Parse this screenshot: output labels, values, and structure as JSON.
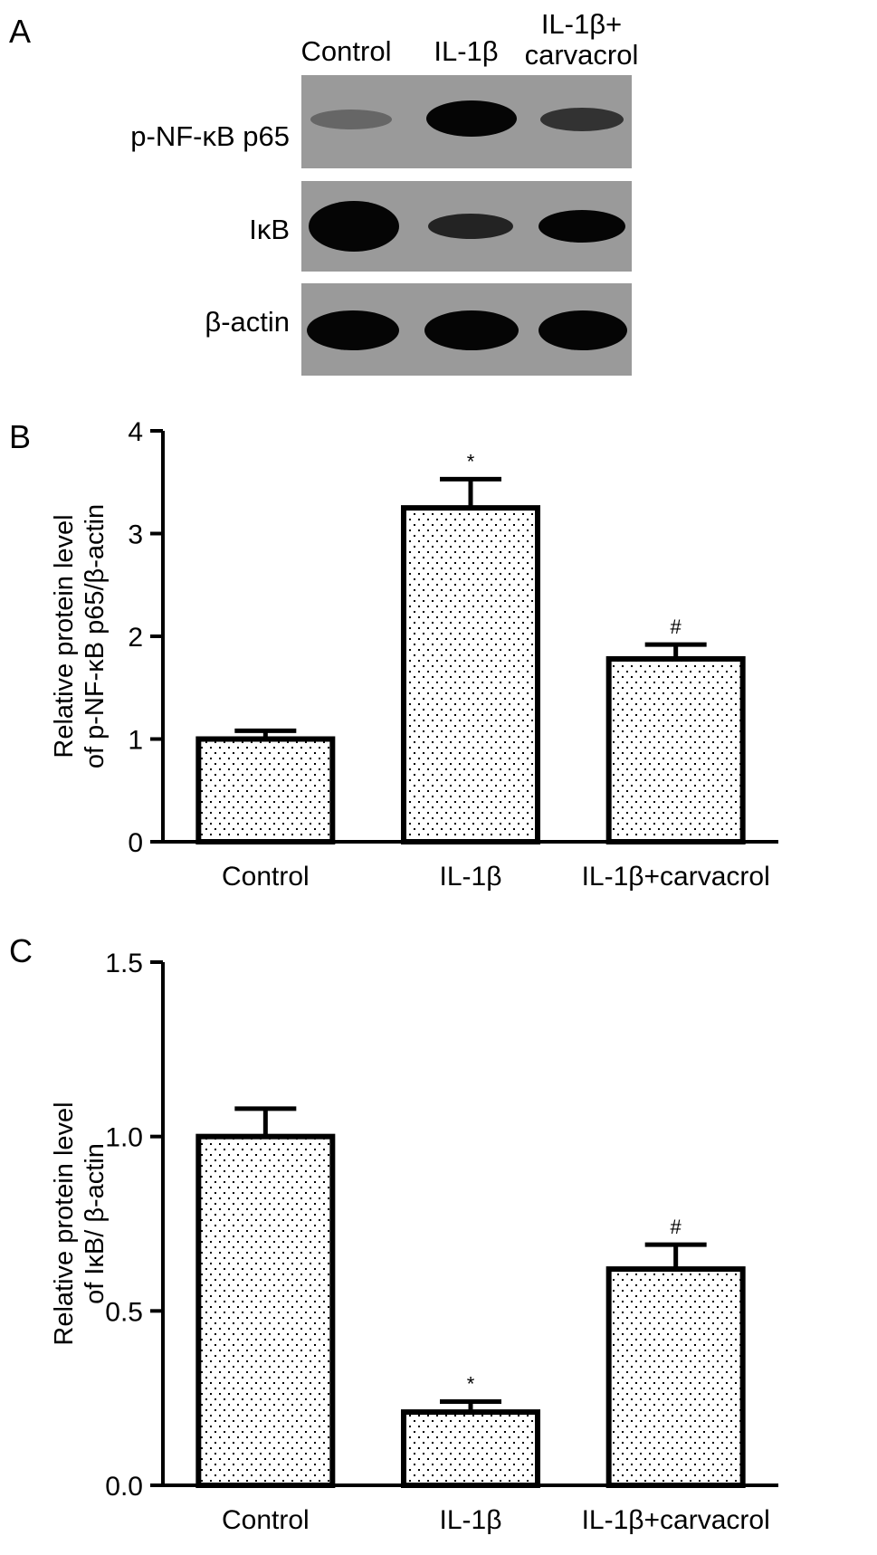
{
  "panels": {
    "a": "A",
    "b": "B",
    "c": "C"
  },
  "blot": {
    "lanes": [
      "Control",
      "IL-1β",
      "IL-1β+\ncarvacrol"
    ],
    "rows": [
      "p-NF-κB p65",
      "IκB",
      "β-actin"
    ],
    "band_intensity": [
      [
        0.25,
        1.0,
        0.55
      ],
      [
        1.0,
        0.45,
        0.75
      ],
      [
        1.0,
        1.0,
        1.0
      ]
    ]
  },
  "chart_data": [
    {
      "type": "bar",
      "categories": [
        "Control",
        "IL-1β",
        "IL-1β+carvacrol"
      ],
      "values": [
        1.0,
        3.25,
        1.78
      ],
      "errors": [
        0.08,
        0.28,
        0.14
      ],
      "annotations": [
        "",
        "*",
        "#"
      ],
      "ylabel": "Relative protein level\nof p-NF-κB p65/β-actin",
      "xlabel": "",
      "ylim": [
        0,
        4
      ],
      "yticks": [
        "0",
        "1",
        "2",
        "3",
        "4"
      ],
      "yticks_values": [
        0,
        1,
        2,
        3,
        4
      ],
      "grid": false,
      "fill": "dotted"
    },
    {
      "type": "bar",
      "categories": [
        "Control",
        "IL-1β",
        "IL-1β+carvacrol"
      ],
      "values": [
        1.0,
        0.21,
        0.62
      ],
      "errors": [
        0.08,
        0.03,
        0.07
      ],
      "annotations": [
        "",
        "*",
        "#"
      ],
      "ylabel": "Relative protein level\nof IκB/ β-actin",
      "xlabel": "",
      "ylim": [
        0,
        1.5
      ],
      "yticks": [
        "0.0",
        "0.5",
        "1.0",
        "1.5"
      ],
      "yticks_values": [
        0,
        0.5,
        1.0,
        1.5
      ],
      "grid": false,
      "fill": "dotted"
    }
  ]
}
